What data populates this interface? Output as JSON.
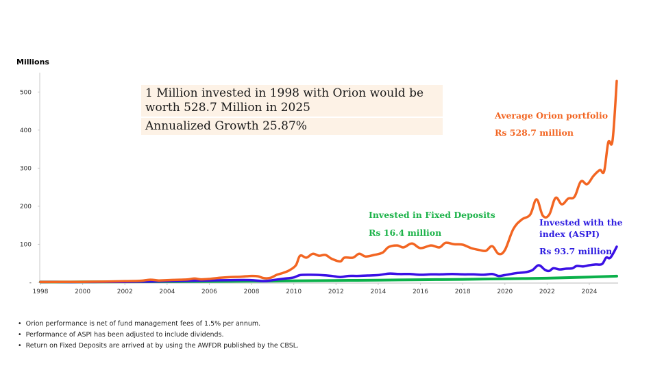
{
  "chart_data": {
    "type": "line",
    "title": "",
    "ylabel": "Millions",
    "xlabel": "",
    "xlim": [
      1998,
      2025.3
    ],
    "ylim": [
      0,
      550
    ],
    "grid": false,
    "x_ticks": [
      1998,
      2000,
      2002,
      2004,
      2006,
      2008,
      2010,
      2012,
      2014,
      2016,
      2018,
      2020,
      2022,
      2024
    ],
    "y_ticks": [
      {
        "value": 0,
        "label": "-"
      },
      {
        "value": 100,
        "label": "100"
      },
      {
        "value": 200,
        "label": "200"
      },
      {
        "value": 300,
        "label": "300"
      },
      {
        "value": 400,
        "label": "400"
      },
      {
        "value": 500,
        "label": "500"
      }
    ],
    "series": [
      {
        "name": "Average Orion portfolio",
        "color": "#f26522",
        "points": [
          [
            1998,
            1
          ],
          [
            1999,
            1.2
          ],
          [
            2000,
            1.5
          ],
          [
            2001,
            2
          ],
          [
            2002,
            3
          ],
          [
            2002.7,
            4
          ],
          [
            2003.2,
            7
          ],
          [
            2003.6,
            5
          ],
          [
            2004,
            6
          ],
          [
            2004.6,
            7
          ],
          [
            2005,
            8
          ],
          [
            2005.3,
            10
          ],
          [
            2005.6,
            8
          ],
          [
            2006,
            9
          ],
          [
            2006.5,
            12
          ],
          [
            2007,
            14
          ],
          [
            2007.5,
            15
          ],
          [
            2008,
            17
          ],
          [
            2008.3,
            16
          ],
          [
            2008.6,
            11
          ],
          [
            2008.9,
            12
          ],
          [
            2009.2,
            20
          ],
          [
            2009.5,
            25
          ],
          [
            2009.8,
            32
          ],
          [
            2010.1,
            45
          ],
          [
            2010.3,
            70
          ],
          [
            2010.6,
            65
          ],
          [
            2010.9,
            75
          ],
          [
            2011.2,
            70
          ],
          [
            2011.5,
            72
          ],
          [
            2011.8,
            62
          ],
          [
            2012.2,
            55
          ],
          [
            2012.4,
            65
          ],
          [
            2012.8,
            65
          ],
          [
            2013.1,
            75
          ],
          [
            2013.4,
            68
          ],
          [
            2013.8,
            72
          ],
          [
            2014.2,
            78
          ],
          [
            2014.5,
            93
          ],
          [
            2014.9,
            97
          ],
          [
            2015.2,
            92
          ],
          [
            2015.6,
            102
          ],
          [
            2016,
            90
          ],
          [
            2016.5,
            97
          ],
          [
            2016.9,
            92
          ],
          [
            2017.2,
            104
          ],
          [
            2017.6,
            100
          ],
          [
            2018,
            99
          ],
          [
            2018.4,
            90
          ],
          [
            2018.8,
            85
          ],
          [
            2019.1,
            83
          ],
          [
            2019.4,
            95
          ],
          [
            2019.7,
            75
          ],
          [
            2020,
            85
          ],
          [
            2020.4,
            140
          ],
          [
            2020.8,
            165
          ],
          [
            2021.2,
            178
          ],
          [
            2021.5,
            218
          ],
          [
            2021.8,
            175
          ],
          [
            2022.1,
            178
          ],
          [
            2022.4,
            222
          ],
          [
            2022.7,
            205
          ],
          [
            2023,
            220
          ],
          [
            2023.3,
            225
          ],
          [
            2023.6,
            265
          ],
          [
            2023.9,
            258
          ],
          [
            2024.2,
            280
          ],
          [
            2024.5,
            295
          ],
          [
            2024.7,
            292
          ],
          [
            2024.9,
            368
          ],
          [
            2025.1,
            373
          ],
          [
            2025.3,
            528.7
          ]
        ]
      },
      {
        "name": "Invested with the index (ASPI)",
        "color": "#3a10e5",
        "points": [
          [
            1998,
            1
          ],
          [
            1998.5,
            1.5
          ],
          [
            1999,
            1
          ],
          [
            2000,
            1
          ],
          [
            2001,
            1.2
          ],
          [
            2002,
            1.5
          ],
          [
            2003,
            2
          ],
          [
            2004,
            3
          ],
          [
            2005,
            4
          ],
          [
            2006,
            5
          ],
          [
            2007,
            6
          ],
          [
            2008,
            6
          ],
          [
            2008.6,
            3
          ],
          [
            2009,
            6
          ],
          [
            2009.6,
            10
          ],
          [
            2010,
            13
          ],
          [
            2010.3,
            19
          ],
          [
            2010.8,
            20
          ],
          [
            2011.3,
            19
          ],
          [
            2011.8,
            17
          ],
          [
            2012.2,
            14
          ],
          [
            2012.6,
            17
          ],
          [
            2013,
            17
          ],
          [
            2013.5,
            18
          ],
          [
            2014,
            19
          ],
          [
            2014.5,
            23
          ],
          [
            2015,
            22
          ],
          [
            2015.5,
            22
          ],
          [
            2016,
            20
          ],
          [
            2016.5,
            21
          ],
          [
            2017,
            21
          ],
          [
            2017.5,
            22
          ],
          [
            2018,
            21
          ],
          [
            2018.5,
            21
          ],
          [
            2019,
            20
          ],
          [
            2019.4,
            22
          ],
          [
            2019.7,
            17
          ],
          [
            2020,
            19
          ],
          [
            2020.5,
            24
          ],
          [
            2021,
            27
          ],
          [
            2021.3,
            32
          ],
          [
            2021.6,
            45
          ],
          [
            2021.9,
            33
          ],
          [
            2022.1,
            30
          ],
          [
            2022.3,
            37
          ],
          [
            2022.6,
            34
          ],
          [
            2022.9,
            36
          ],
          [
            2023.2,
            37
          ],
          [
            2023.4,
            43
          ],
          [
            2023.7,
            42
          ],
          [
            2024,
            45
          ],
          [
            2024.3,
            47
          ],
          [
            2024.6,
            48
          ],
          [
            2024.8,
            65
          ],
          [
            2025.0,
            65
          ],
          [
            2025.3,
            93.7
          ]
        ]
      },
      {
        "name": "Invested in Fixed Deposits",
        "color": "#0ab04a",
        "points": [
          [
            1998,
            1
          ],
          [
            2000,
            1.3
          ],
          [
            2002,
            1.6
          ],
          [
            2004,
            2
          ],
          [
            2006,
            2.5
          ],
          [
            2008,
            3
          ],
          [
            2010,
            4
          ],
          [
            2012,
            5
          ],
          [
            2014,
            6
          ],
          [
            2016,
            7
          ],
          [
            2018,
            8
          ],
          [
            2020,
            9.5
          ],
          [
            2022,
            11
          ],
          [
            2024,
            14
          ],
          [
            2025.3,
            16.4
          ]
        ]
      }
    ],
    "annotations": [
      {
        "series": "Average Orion portfolio",
        "title": "Average Orion portfolio",
        "value": "Rs 528.7 million"
      },
      {
        "series": "Invested in Fixed Deposits",
        "title": "Invested in Fixed Deposits",
        "value": "Rs 16.4 million"
      },
      {
        "series": "Invested with the index (ASPI)",
        "title": "Invested with the index (ASPI)",
        "value": "Rs 93.7 million"
      }
    ],
    "legend": "none"
  },
  "info_box": {
    "line1": "1 Million invested in 1998 with Orion would be worth 528.7 Million in 2025",
    "line2": "Annualized Growth  25.87%"
  },
  "labels": {
    "orion_title": "Average Orion portfolio",
    "orion_value": "Rs 528.7 million",
    "fd_title": "Invested in Fixed Deposits",
    "fd_value": "Rs 16.4 million",
    "aspi_title": "Invested with the index (ASPI)",
    "aspi_value": "Rs 93.7 million"
  },
  "footnotes": [
    "Orion performance is net of fund management fees of 1.5% per annum.",
    "Performance of ASPI has been adjusted to include dividends.",
    "Return on Fixed Deposits are arrived at by using the AWFDR published by the CBSL."
  ]
}
